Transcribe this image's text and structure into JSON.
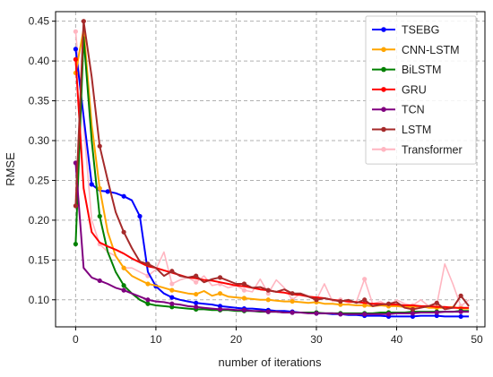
{
  "chart_data": {
    "type": "line",
    "xlabel": "number of iterations",
    "ylabel": "RMSE",
    "xlim": [
      -2.5,
      51
    ],
    "ylim": [
      0.066,
      0.462
    ],
    "xticks": [
      0,
      10,
      20,
      30,
      40,
      50
    ],
    "yticks": [
      0.1,
      0.15,
      0.2,
      0.25,
      0.3,
      0.35,
      0.4,
      0.45
    ],
    "xtick_labels": [
      "0",
      "10",
      "20",
      "30",
      "40",
      "50"
    ],
    "ytick_labels": [
      "0.10",
      "0.15",
      "0.20",
      "0.25",
      "0.30",
      "0.35",
      "0.40",
      "0.45"
    ],
    "grid": true,
    "legend_position": "top-right",
    "series": [
      {
        "name": "TSEBG",
        "color": "#0000ff",
        "width": 2.0,
        "markers": [
          0,
          2,
          4,
          6,
          8,
          10,
          12,
          15,
          18,
          21,
          24,
          27,
          30,
          33,
          36,
          39,
          42,
          45,
          48
        ],
        "x": [
          0,
          1,
          2,
          3,
          4,
          5,
          6,
          7,
          8,
          9,
          10,
          11,
          12,
          13,
          14,
          15,
          16,
          17,
          18,
          19,
          20,
          21,
          22,
          23,
          24,
          25,
          26,
          27,
          28,
          29,
          30,
          31,
          32,
          33,
          34,
          35,
          36,
          37,
          38,
          39,
          40,
          41,
          42,
          43,
          44,
          45,
          46,
          47,
          48,
          49
        ],
        "y": [
          0.415,
          0.33,
          0.245,
          0.237,
          0.236,
          0.234,
          0.23,
          0.225,
          0.205,
          0.135,
          0.117,
          0.108,
          0.103,
          0.1,
          0.098,
          0.096,
          0.095,
          0.094,
          0.092,
          0.091,
          0.09,
          0.089,
          0.089,
          0.088,
          0.087,
          0.086,
          0.086,
          0.085,
          0.084,
          0.084,
          0.083,
          0.083,
          0.082,
          0.082,
          0.081,
          0.081,
          0.08,
          0.08,
          0.08,
          0.079,
          0.079,
          0.079,
          0.079,
          0.08,
          0.08,
          0.08,
          0.079,
          0.079,
          0.079,
          0.079
        ]
      },
      {
        "name": "CNN-LSTM",
        "color": "#ffa500",
        "width": 2.0,
        "markers": [
          0,
          3,
          6,
          9,
          12,
          15,
          18,
          21,
          24,
          27,
          30,
          33,
          36,
          39,
          42,
          45,
          48
        ],
        "x": [
          0,
          1,
          2,
          3,
          4,
          5,
          6,
          7,
          8,
          9,
          10,
          11,
          12,
          13,
          14,
          15,
          16,
          17,
          18,
          19,
          20,
          21,
          22,
          23,
          24,
          25,
          26,
          27,
          28,
          29,
          30,
          31,
          32,
          33,
          34,
          35,
          36,
          37,
          38,
          39,
          40,
          41,
          42,
          43,
          44,
          45,
          46,
          47,
          48,
          49
        ],
        "y": [
          0.385,
          0.44,
          0.32,
          0.24,
          0.185,
          0.155,
          0.14,
          0.13,
          0.125,
          0.12,
          0.118,
          0.115,
          0.112,
          0.11,
          0.108,
          0.107,
          0.111,
          0.105,
          0.108,
          0.104,
          0.103,
          0.102,
          0.101,
          0.1,
          0.1,
          0.099,
          0.098,
          0.098,
          0.097,
          0.096,
          0.097,
          0.095,
          0.095,
          0.094,
          0.094,
          0.093,
          0.093,
          0.092,
          0.093,
          0.092,
          0.092,
          0.091,
          0.091,
          0.092,
          0.09,
          0.09,
          0.09,
          0.091,
          0.089,
          0.089
        ]
      },
      {
        "name": "BiLSTM",
        "color": "#008000",
        "width": 2.0,
        "markers": [
          0,
          3,
          6,
          9,
          12,
          15,
          18,
          21,
          24,
          27,
          30,
          33,
          36,
          39,
          42,
          45,
          48
        ],
        "x": [
          0,
          1,
          2,
          3,
          4,
          5,
          6,
          7,
          8,
          9,
          10,
          11,
          12,
          13,
          14,
          15,
          16,
          17,
          18,
          19,
          20,
          21,
          22,
          23,
          24,
          25,
          26,
          27,
          28,
          29,
          30,
          31,
          32,
          33,
          34,
          35,
          36,
          37,
          38,
          39,
          40,
          41,
          42,
          43,
          44,
          45,
          46,
          47,
          48,
          49
        ],
        "y": [
          0.17,
          0.43,
          0.3,
          0.205,
          0.16,
          0.135,
          0.118,
          0.108,
          0.1,
          0.095,
          0.093,
          0.092,
          0.091,
          0.09,
          0.089,
          0.088,
          0.088,
          0.087,
          0.087,
          0.087,
          0.086,
          0.086,
          0.086,
          0.085,
          0.085,
          0.085,
          0.084,
          0.084,
          0.084,
          0.084,
          0.084,
          0.083,
          0.083,
          0.083,
          0.083,
          0.083,
          0.083,
          0.083,
          0.084,
          0.084,
          0.084,
          0.084,
          0.085,
          0.085,
          0.085,
          0.085,
          0.085,
          0.085,
          0.086,
          0.086
        ]
      },
      {
        "name": "GRU",
        "color": "#ff0000",
        "width": 2.0,
        "markers": [
          0
        ],
        "x": [
          0,
          1,
          2,
          3,
          4,
          5,
          6,
          7,
          8,
          9,
          10,
          11,
          12,
          13,
          14,
          15,
          16,
          17,
          18,
          19,
          20,
          21,
          22,
          23,
          24,
          25,
          26,
          27,
          28,
          29,
          30,
          31,
          32,
          33,
          34,
          35,
          36,
          37,
          38,
          39,
          40,
          41,
          42,
          43,
          44,
          45,
          46,
          47,
          48,
          49
        ],
        "y": [
          0.402,
          0.24,
          0.185,
          0.172,
          0.167,
          0.163,
          0.158,
          0.152,
          0.147,
          0.142,
          0.14,
          0.137,
          0.134,
          0.131,
          0.128,
          0.127,
          0.125,
          0.124,
          0.122,
          0.12,
          0.118,
          0.117,
          0.115,
          0.113,
          0.112,
          0.11,
          0.109,
          0.107,
          0.106,
          0.104,
          0.103,
          0.102,
          0.1,
          0.099,
          0.098,
          0.097,
          0.096,
          0.095,
          0.095,
          0.094,
          0.094,
          0.093,
          0.093,
          0.092,
          0.092,
          0.091,
          0.091,
          0.09,
          0.09,
          0.09
        ]
      },
      {
        "name": "TCN",
        "color": "#800080",
        "width": 2.0,
        "markers": [
          0,
          3,
          6,
          9,
          12,
          15,
          18,
          21,
          24,
          27,
          30,
          33,
          36,
          39,
          42,
          45,
          48
        ],
        "x": [
          0,
          1,
          2,
          3,
          4,
          5,
          6,
          7,
          8,
          9,
          10,
          11,
          12,
          13,
          14,
          15,
          16,
          17,
          18,
          19,
          20,
          21,
          22,
          23,
          24,
          25,
          26,
          27,
          28,
          29,
          30,
          31,
          32,
          33,
          34,
          35,
          36,
          37,
          38,
          39,
          40,
          41,
          42,
          43,
          44,
          45,
          46,
          47,
          48,
          49
        ],
        "y": [
          0.272,
          0.14,
          0.128,
          0.124,
          0.12,
          0.115,
          0.112,
          0.108,
          0.104,
          0.1,
          0.098,
          0.097,
          0.095,
          0.094,
          0.092,
          0.091,
          0.09,
          0.089,
          0.088,
          0.088,
          0.087,
          0.087,
          0.086,
          0.086,
          0.085,
          0.085,
          0.084,
          0.084,
          0.084,
          0.083,
          0.083,
          0.083,
          0.083,
          0.082,
          0.082,
          0.082,
          0.082,
          0.082,
          0.082,
          0.082,
          0.083,
          0.083,
          0.083,
          0.084,
          0.084,
          0.084,
          0.085,
          0.085,
          0.085,
          0.085
        ]
      },
      {
        "name": "LSTM",
        "color": "#a52a2a",
        "width": 2.0,
        "markers": [
          0,
          1,
          3,
          6,
          9,
          12,
          15,
          18,
          21,
          24,
          27,
          30,
          33,
          36,
          39,
          42,
          45,
          48
        ],
        "x": [
          0,
          1,
          2,
          3,
          4,
          5,
          6,
          7,
          8,
          9,
          10,
          11,
          12,
          13,
          14,
          15,
          16,
          17,
          18,
          19,
          20,
          21,
          22,
          23,
          24,
          25,
          26,
          27,
          28,
          29,
          30,
          31,
          32,
          33,
          34,
          35,
          36,
          37,
          38,
          39,
          40,
          41,
          42,
          43,
          44,
          45,
          46,
          47,
          48,
          49
        ],
        "y": [
          0.218,
          0.45,
          0.38,
          0.293,
          0.25,
          0.21,
          0.185,
          0.165,
          0.148,
          0.145,
          0.14,
          0.13,
          0.136,
          0.13,
          0.128,
          0.13,
          0.122,
          0.126,
          0.128,
          0.124,
          0.12,
          0.12,
          0.115,
          0.116,
          0.112,
          0.11,
          0.113,
          0.108,
          0.108,
          0.104,
          0.1,
          0.102,
          0.1,
          0.098,
          0.1,
          0.096,
          0.1,
          0.092,
          0.094,
          0.095,
          0.097,
          0.09,
          0.088,
          0.09,
          0.092,
          0.096,
          0.088,
          0.09,
          0.105,
          0.092
        ]
      },
      {
        "name": "Transformer",
        "color": "#ffb6c1",
        "width": 1.6,
        "markers": [
          0,
          3,
          6,
          9,
          12,
          15,
          18,
          21,
          24,
          27,
          30,
          33,
          36,
          39,
          42,
          45,
          48
        ],
        "x": [
          0,
          1,
          2,
          3,
          4,
          5,
          6,
          7,
          8,
          9,
          10,
          11,
          12,
          13,
          14,
          15,
          16,
          17,
          18,
          19,
          20,
          21,
          22,
          23,
          24,
          25,
          26,
          27,
          28,
          29,
          30,
          31,
          32,
          33,
          34,
          35,
          36,
          37,
          38,
          39,
          40,
          41,
          42,
          43,
          44,
          45,
          46,
          47,
          48,
          49
        ],
        "y": [
          0.437,
          0.32,
          0.2,
          0.17,
          0.16,
          0.155,
          0.14,
          0.14,
          0.135,
          0.13,
          0.138,
          0.16,
          0.12,
          0.125,
          0.128,
          0.122,
          0.13,
          0.118,
          0.12,
          0.115,
          0.118,
          0.112,
          0.11,
          0.126,
          0.108,
          0.125,
          0.115,
          0.1,
          0.108,
          0.105,
          0.1,
          0.12,
          0.098,
          0.1,
          0.096,
          0.098,
          0.126,
          0.095,
          0.098,
          0.092,
          0.1,
          0.095,
          0.093,
          0.1,
          0.092,
          0.094,
          0.145,
          0.12,
          0.092,
          0.1
        ]
      }
    ]
  }
}
